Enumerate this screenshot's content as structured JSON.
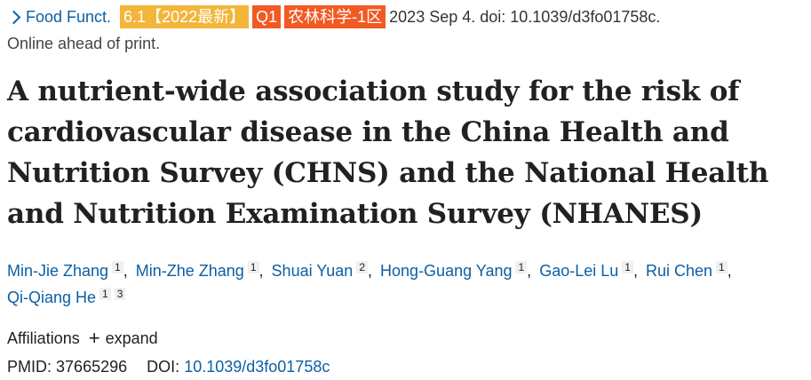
{
  "citation": {
    "journal": "Food Funct.",
    "badges": {
      "impact": "6.1【2022最新】",
      "quartile": "Q1",
      "category": "农林科学-1区"
    },
    "rest": "2023 Sep 4. doi: 10.1039/d3fo01758c."
  },
  "status": "Online ahead of print.",
  "title": "A nutrient-wide association study for the risk of cardiovascular disease in the China Health and Nutrition Survey (CHNS) and the National Health and Nutrition Examination Survey (NHANES)",
  "authors": [
    {
      "name": "Min-Jie Zhang",
      "affs": [
        "1"
      ]
    },
    {
      "name": "Min-Zhe Zhang",
      "affs": [
        "1"
      ]
    },
    {
      "name": "Shuai Yuan",
      "affs": [
        "2"
      ]
    },
    {
      "name": "Hong-Guang Yang",
      "affs": [
        "1"
      ]
    },
    {
      "name": "Gao-Lei Lu",
      "affs": [
        "1"
      ]
    },
    {
      "name": "Rui Chen",
      "affs": [
        "1"
      ]
    },
    {
      "name": "Qi-Qiang He",
      "affs": [
        "1",
        "3"
      ]
    }
  ],
  "affiliations": {
    "label": "Affiliations",
    "expand_label": "expand",
    "icon": "plus-icon"
  },
  "identifiers": {
    "pmid_label": "PMID:",
    "pmid": "37665296",
    "doi_label": "DOI:",
    "doi": "10.1039/d3fo01758c"
  },
  "colors": {
    "link": "#0b5fa5",
    "badge_if": "#f3b53a",
    "badge_q": "#f15a22"
  }
}
